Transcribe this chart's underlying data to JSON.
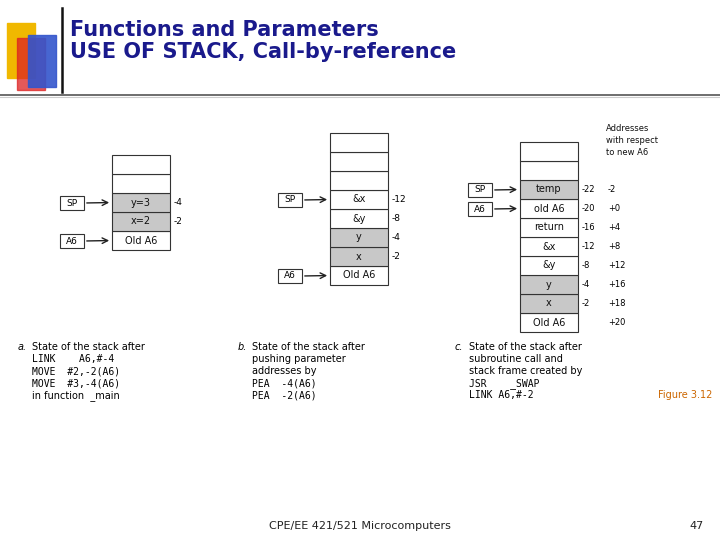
{
  "title_line1": "Functions and Parameters",
  "title_line2": "USE OF STACK, Call-by-reference",
  "title_color": "#1a1a8c",
  "title_fontsize": 15,
  "bg_color": "#ffffff",
  "footer_text": "CPE/EE 421/521 Microcomputers",
  "footer_page": "47",
  "figure_label": "Figure 3.12",
  "figure_label_color": "#cc6600"
}
